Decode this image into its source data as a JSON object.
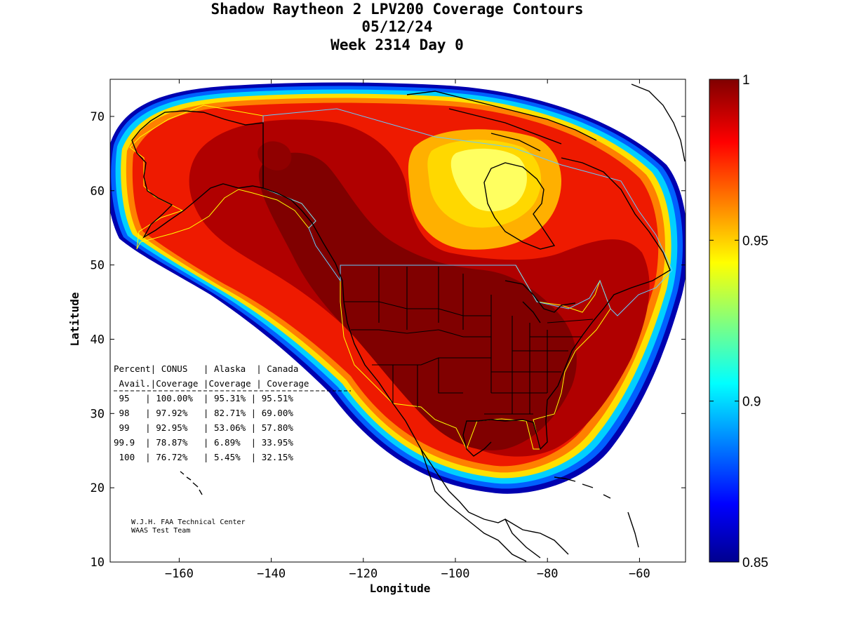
{
  "title": {
    "line1": "Shadow Raytheon 2 LPV200 Coverage Contours",
    "line2": "05/12/24",
    "line3": "Week 2314 Day 0"
  },
  "axes": {
    "xlabel": "Longitude",
    "ylabel": "Latitude",
    "xlim": [
      -175,
      -50
    ],
    "ylim": [
      10,
      75
    ],
    "xticks": [
      -160,
      -140,
      -120,
      -100,
      -80,
      -60
    ],
    "yticks": [
      10,
      20,
      30,
      40,
      50,
      60,
      70
    ]
  },
  "colorbar": {
    "min": 0.85,
    "max": 1,
    "tick_labels": [
      "1",
      "0.95",
      "0.9",
      "0.85"
    ],
    "colormap": "jet"
  },
  "availability_table": {
    "header_row1": "Percent| CONUS   | Alaska  | Canada",
    "header_row2": " Avail.|Coverage |Coverage | Coverage",
    "rows": [
      " 95   | 100.00%  | 95.31% | 95.51%",
      " 98   | 97.92%   | 82.71% | 69.00%",
      " 99   | 92.95%   | 53.06% | 57.80%",
      "99.9  | 78.87%   | 6.89%  | 33.95%",
      " 100  | 76.72%   | 5.45%  | 32.15%"
    ]
  },
  "credit": {
    "line1": "W.J.H. FAA Technical Center",
    "line2": "WAAS Test Team"
  },
  "colors": {
    "coverage_max": "#7f0000",
    "coverage_high": "#cc0000",
    "coverage_mid": "#ff3300",
    "coverage_95": "#ffd200",
    "coverage_90": "#00c8ff",
    "coverage_min": "#00008f",
    "border_overlay": "#ffff00",
    "canada_overlay": "#66ccff"
  }
}
